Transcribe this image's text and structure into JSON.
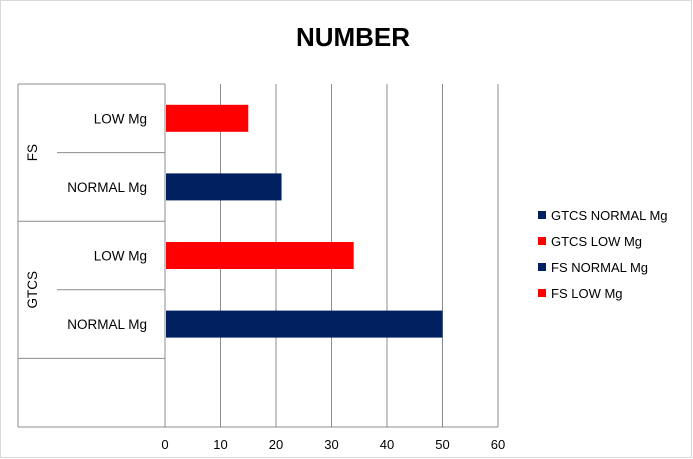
{
  "chart_data": {
    "type": "bar",
    "orientation": "horizontal",
    "title": "NUMBER",
    "groups": [
      {
        "label": "FS",
        "categories": [
          "LOW Mg",
          "NORMAL Mg"
        ]
      },
      {
        "label": "GTCS",
        "categories": [
          "LOW Mg",
          "NORMAL Mg"
        ]
      }
    ],
    "bars": [
      {
        "group": "FS",
        "category": "LOW Mg",
        "series": "FS LOW Mg",
        "value": 15,
        "color": "#ff0000"
      },
      {
        "group": "FS",
        "category": "NORMAL Mg",
        "series": "FS NORMAL Mg",
        "value": 21,
        "color": "#002060"
      },
      {
        "group": "GTCS",
        "category": "LOW Mg",
        "series": "GTCS LOW Mg",
        "value": 34,
        "color": "#ff0000"
      },
      {
        "group": "GTCS",
        "category": "NORMAL Mg",
        "series": "GTCS NORMAL Mg",
        "value": 50,
        "color": "#002060"
      }
    ],
    "xlim": [
      0,
      60
    ],
    "xticks": [
      0,
      10,
      20,
      30,
      40,
      50,
      60
    ],
    "grid": "vertical",
    "legend": {
      "position": "right",
      "entries": [
        {
          "name": "GTCS NORMAL Mg",
          "color": "#002060"
        },
        {
          "name": "GTCS LOW Mg",
          "color": "#ff0000"
        },
        {
          "name": "FS NORMAL Mg",
          "color": "#002060"
        },
        {
          "name": "FS LOW Mg",
          "color": "#ff0000"
        }
      ]
    }
  }
}
